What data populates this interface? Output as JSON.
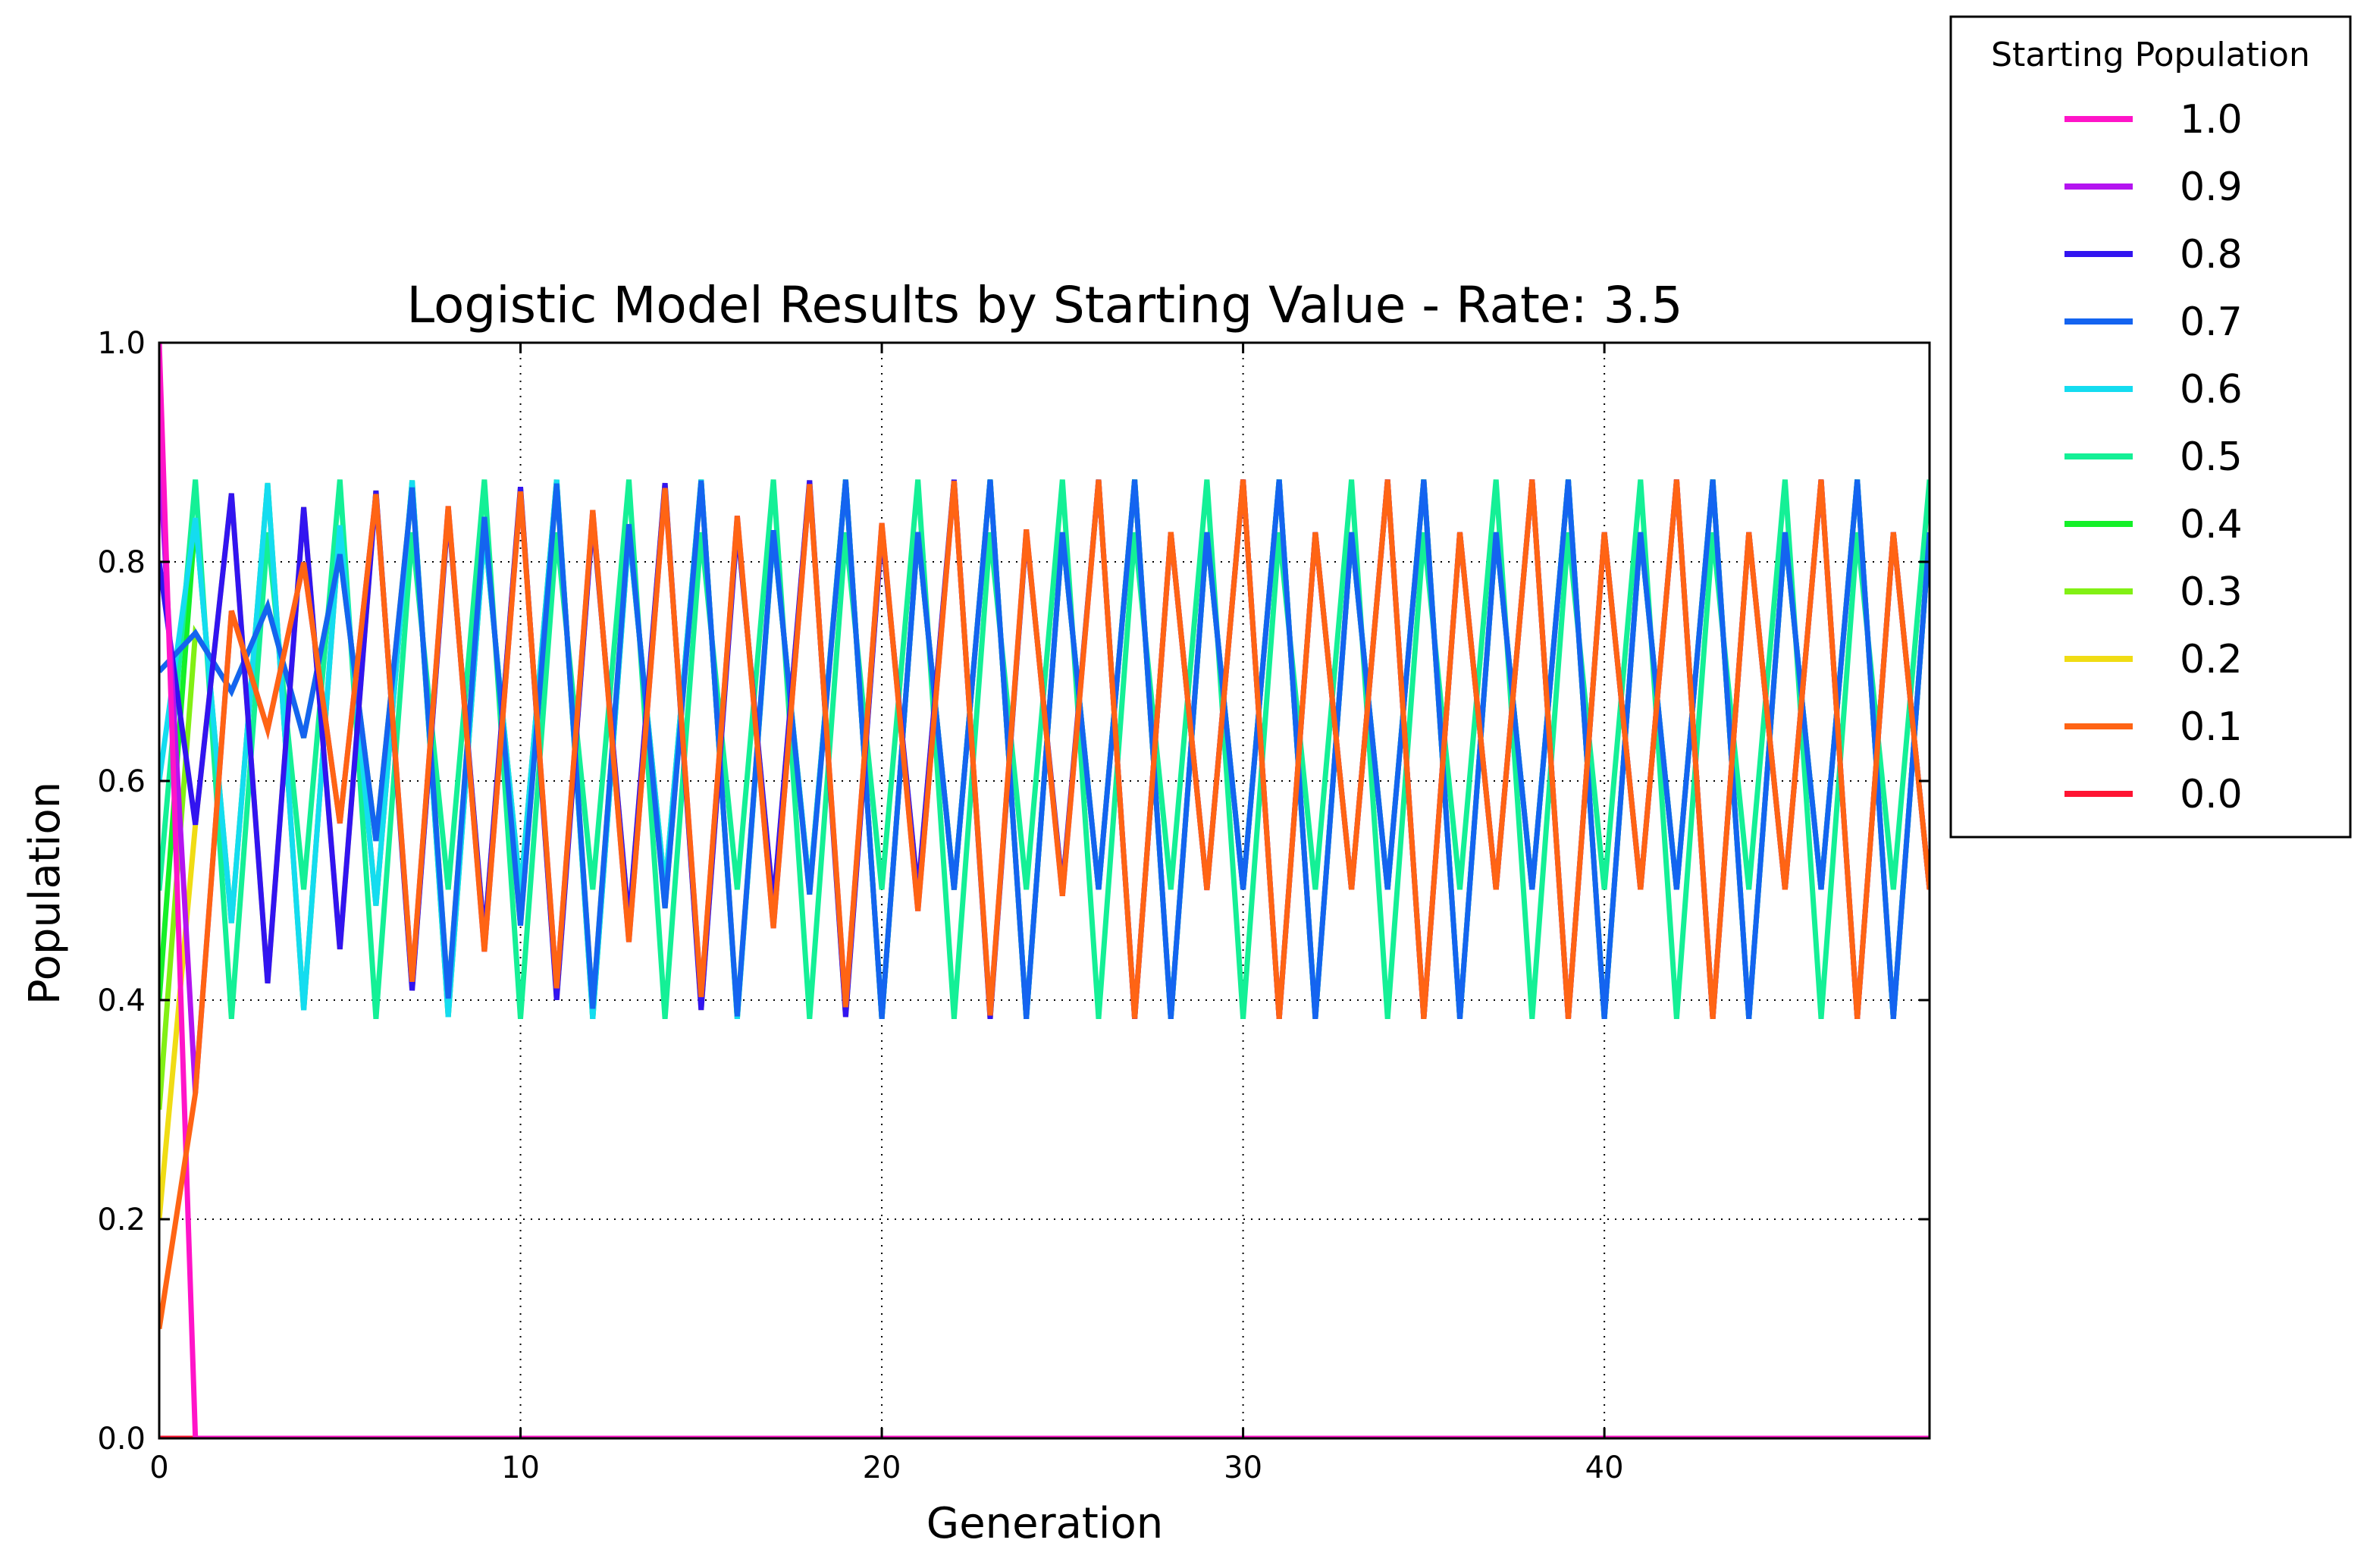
{
  "chart_data": {
    "type": "line",
    "title": "Logistic Model Results by Starting Value - Rate: 3.5",
    "xlabel": "Generation",
    "ylabel": "Population",
    "xlim": [
      0,
      49
    ],
    "ylim": [
      0.0,
      1.0
    ],
    "xticks": [
      0,
      10,
      20,
      30,
      40
    ],
    "xtick_labels": [
      "0",
      "10",
      "20",
      "30",
      "40"
    ],
    "yticks": [
      0.0,
      0.2,
      0.4,
      0.6,
      0.8,
      1.0
    ],
    "ytick_labels": [
      "0.0",
      "0.2",
      "0.4",
      "0.6",
      "0.8",
      "1.0"
    ],
    "grid": true,
    "grid_style": "dotted",
    "legend_title": "Starting Population",
    "legend_position": "outside-top-right",
    "rate": 3.5,
    "generations": 50,
    "series": [
      {
        "name": "1.0",
        "start": 1.0,
        "color": "#ff14c8"
      },
      {
        "name": "0.9",
        "start": 0.9,
        "color": "#b414f0"
      },
      {
        "name": "0.8",
        "start": 0.8,
        "color": "#3214f0"
      },
      {
        "name": "0.7",
        "start": 0.7,
        "color": "#1464f0"
      },
      {
        "name": "0.6",
        "start": 0.6,
        "color": "#14dcf0"
      },
      {
        "name": "0.5",
        "start": 0.5,
        "color": "#14f096"
      },
      {
        "name": "0.4",
        "start": 0.4,
        "color": "#14f028"
      },
      {
        "name": "0.3",
        "start": 0.3,
        "color": "#82f014"
      },
      {
        "name": "0.2",
        "start": 0.2,
        "color": "#f0dc14"
      },
      {
        "name": "0.1",
        "start": 0.1,
        "color": "#ff6414"
      },
      {
        "name": "0.0",
        "start": 0.0,
        "color": "#ff1432"
      }
    ]
  }
}
